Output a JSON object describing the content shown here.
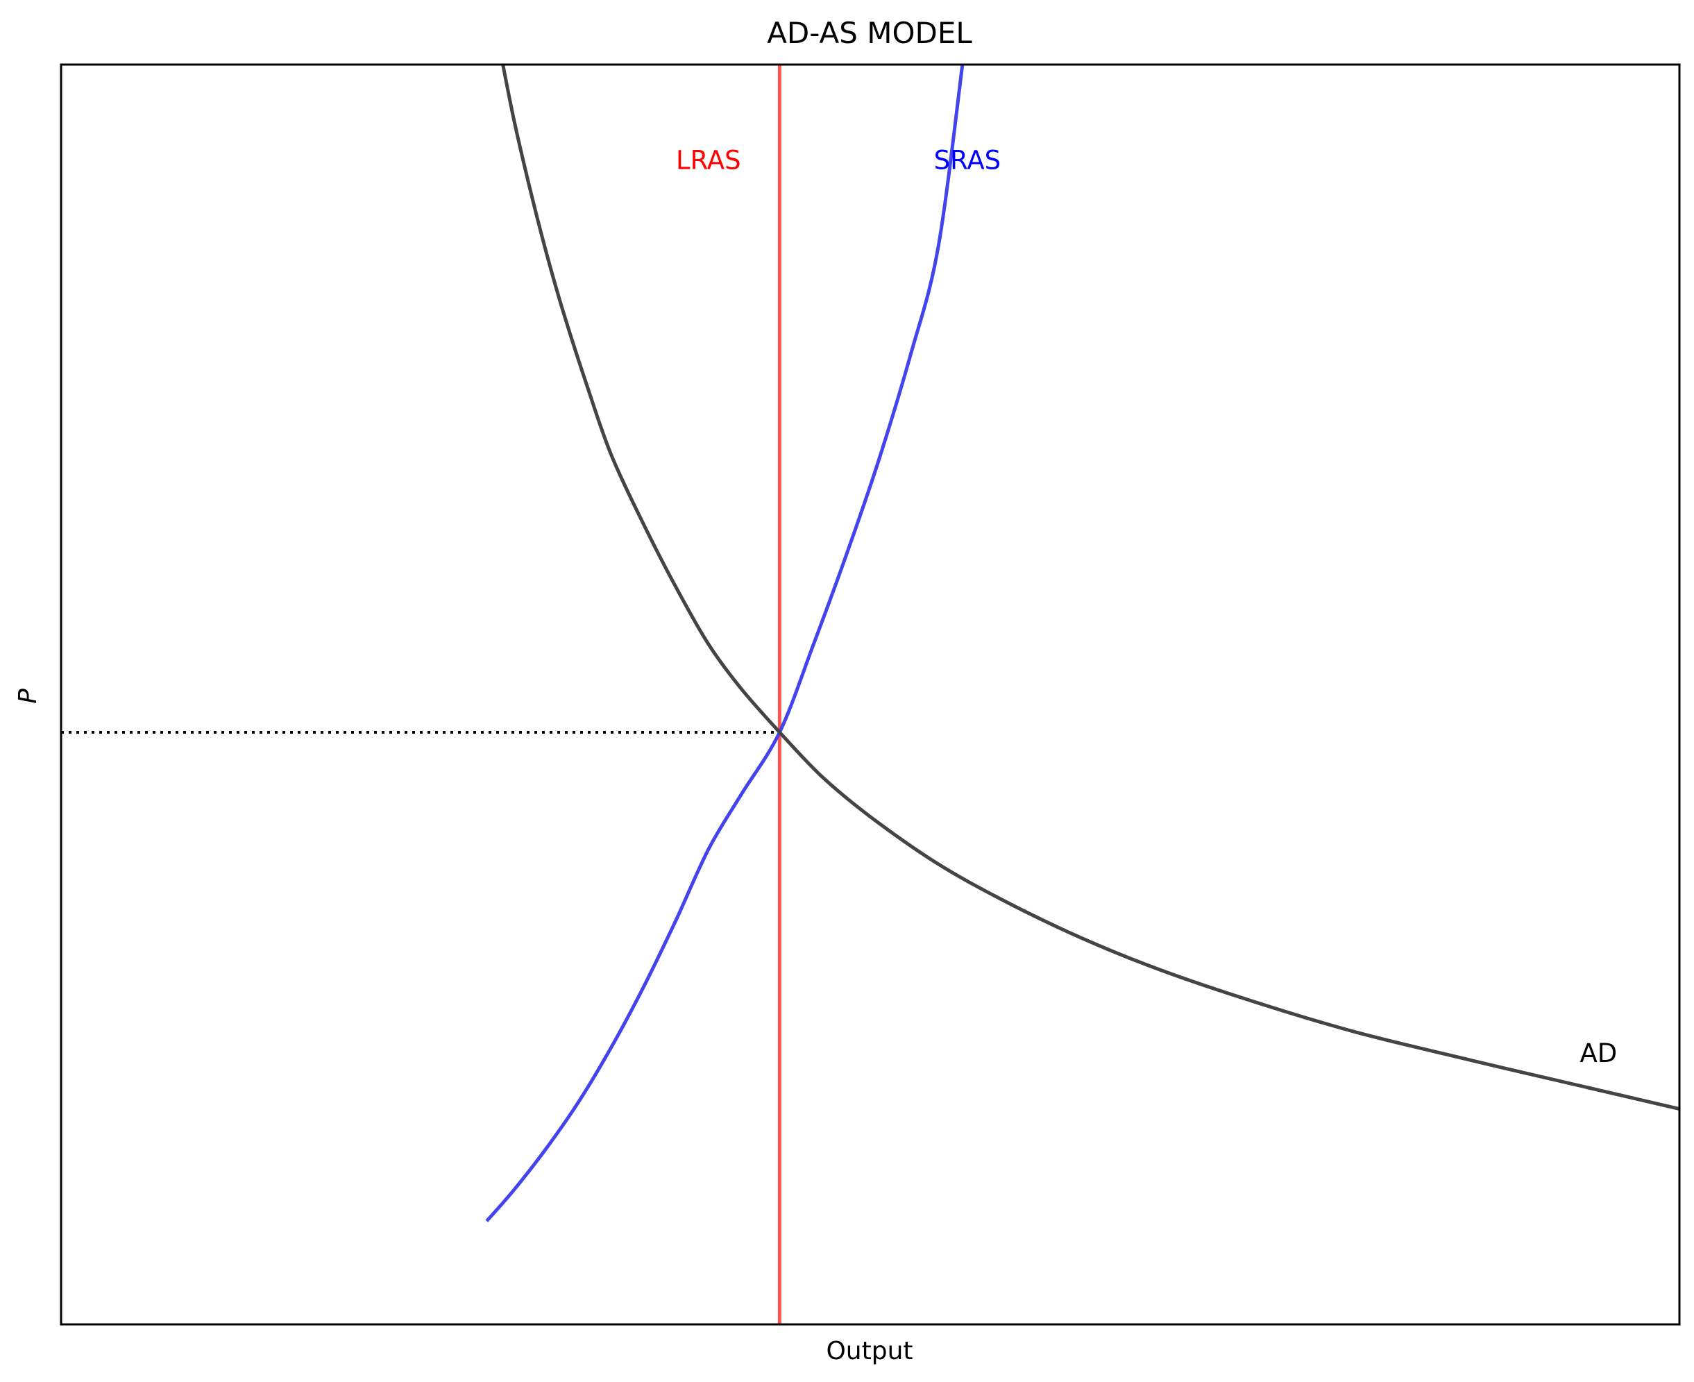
{
  "chart_data": {
    "type": "line",
    "title": "AD-AS MODEL",
    "xlabel": "Output",
    "ylabel": "P",
    "xlim": [
      0,
      10
    ],
    "ylim": [
      0,
      10
    ],
    "xticks": [],
    "yticks": [],
    "grid": false,
    "equilibrium": {
      "x": 4.44,
      "y": 4.7
    },
    "series": [
      {
        "name": "AD",
        "color": "#444444",
        "x": [
          2.73,
          2.8,
          2.9,
          3.0,
          3.1,
          3.25,
          3.4,
          3.6,
          3.8,
          4.0,
          4.2,
          4.44,
          4.7,
          5.0,
          5.4,
          5.8,
          6.3,
          6.8,
          7.4,
          8.0,
          8.7,
          9.4,
          10.0
        ],
        "y": [
          10.0,
          9.55,
          9.0,
          8.5,
          8.05,
          7.45,
          6.9,
          6.35,
          5.85,
          5.4,
          5.05,
          4.7,
          4.35,
          4.03,
          3.67,
          3.38,
          3.07,
          2.81,
          2.55,
          2.32,
          2.1,
          1.89,
          1.71
        ]
      },
      {
        "name": "SRAS",
        "color": "#4444ee",
        "x": [
          2.63,
          2.8,
          3.0,
          3.2,
          3.4,
          3.6,
          3.8,
          4.0,
          4.2,
          4.44,
          4.65,
          4.85,
          5.05,
          5.25,
          5.42,
          5.57
        ],
        "y": [
          0.82,
          1.07,
          1.4,
          1.77,
          2.2,
          2.68,
          3.21,
          3.77,
          4.2,
          4.7,
          5.4,
          6.1,
          6.85,
          7.7,
          8.55,
          10.0
        ]
      },
      {
        "name": "LRAS",
        "color": "#ff5555",
        "x": [
          4.44,
          4.44
        ],
        "y": [
          0,
          10
        ]
      }
    ],
    "annotations": [
      {
        "text": "LRAS",
        "x": 4.0,
        "y": 9.23,
        "color": "#ff0000"
      },
      {
        "text": "SRAS",
        "x": 5.6,
        "y": 9.23,
        "color": "#0000ff"
      },
      {
        "text": "AD",
        "x": 9.5,
        "y": 2.14,
        "color": "#000000"
      }
    ]
  }
}
